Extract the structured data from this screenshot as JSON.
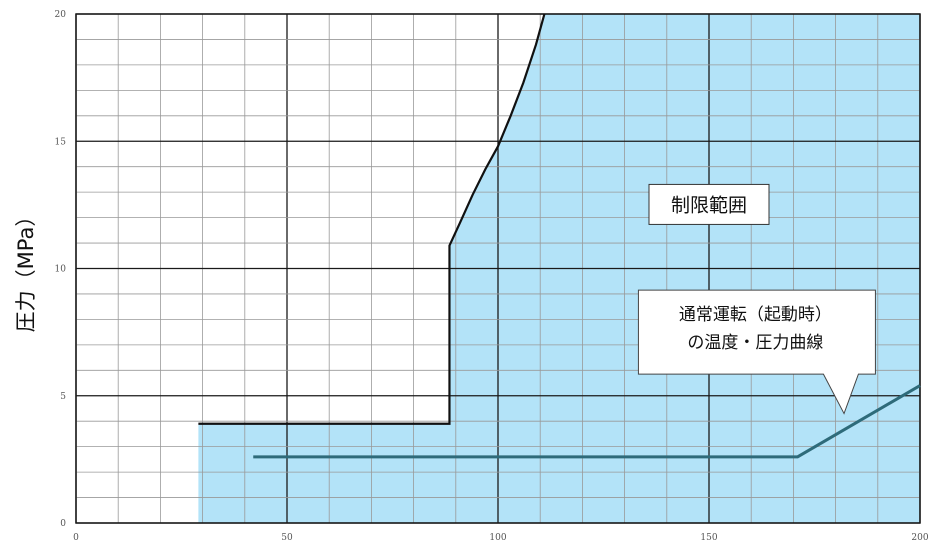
{
  "chart_data": {
    "type": "area",
    "x": {
      "ticks": [
        0,
        50,
        100,
        150,
        200
      ],
      "range": [
        0,
        200
      ],
      "minor_step": 10
    },
    "y": {
      "label": "圧力（MPa）",
      "ticks": [
        0,
        5,
        10,
        15,
        20
      ],
      "range": [
        0,
        20
      ],
      "minor_step": 1
    },
    "colors": {
      "region": "#b3e3f8",
      "operation": "#2e6b7a",
      "limit": "#111111",
      "grid_dark": "#1a1a1a",
      "grid_light": "#999999"
    },
    "series": [
      {
        "role": "limit_boundary",
        "points": [
          [
            29,
            3.9
          ],
          [
            88.5,
            3.9
          ],
          [
            88.5,
            10.9
          ],
          [
            91,
            11.8
          ],
          [
            94,
            12.9
          ],
          [
            97,
            13.9
          ],
          [
            100,
            14.8
          ],
          [
            103,
            16.0
          ],
          [
            106,
            17.3
          ],
          [
            109,
            18.8
          ],
          [
            111,
            20
          ]
        ]
      },
      {
        "role": "operating_curve",
        "points": [
          [
            42,
            2.6
          ],
          [
            171,
            2.6
          ],
          [
            200,
            5.4
          ]
        ]
      }
    ],
    "annotations": [
      {
        "text": "制限範囲",
        "x": 150,
        "y": 12.4,
        "boxed": true
      },
      {
        "lines": [
          "通常運転（起動時）",
          "の温度・圧力曲線"
        ],
        "x": 161,
        "y": 7.5,
        "boxed": true,
        "arrow_to": [
          182,
          4.3
        ]
      }
    ]
  }
}
